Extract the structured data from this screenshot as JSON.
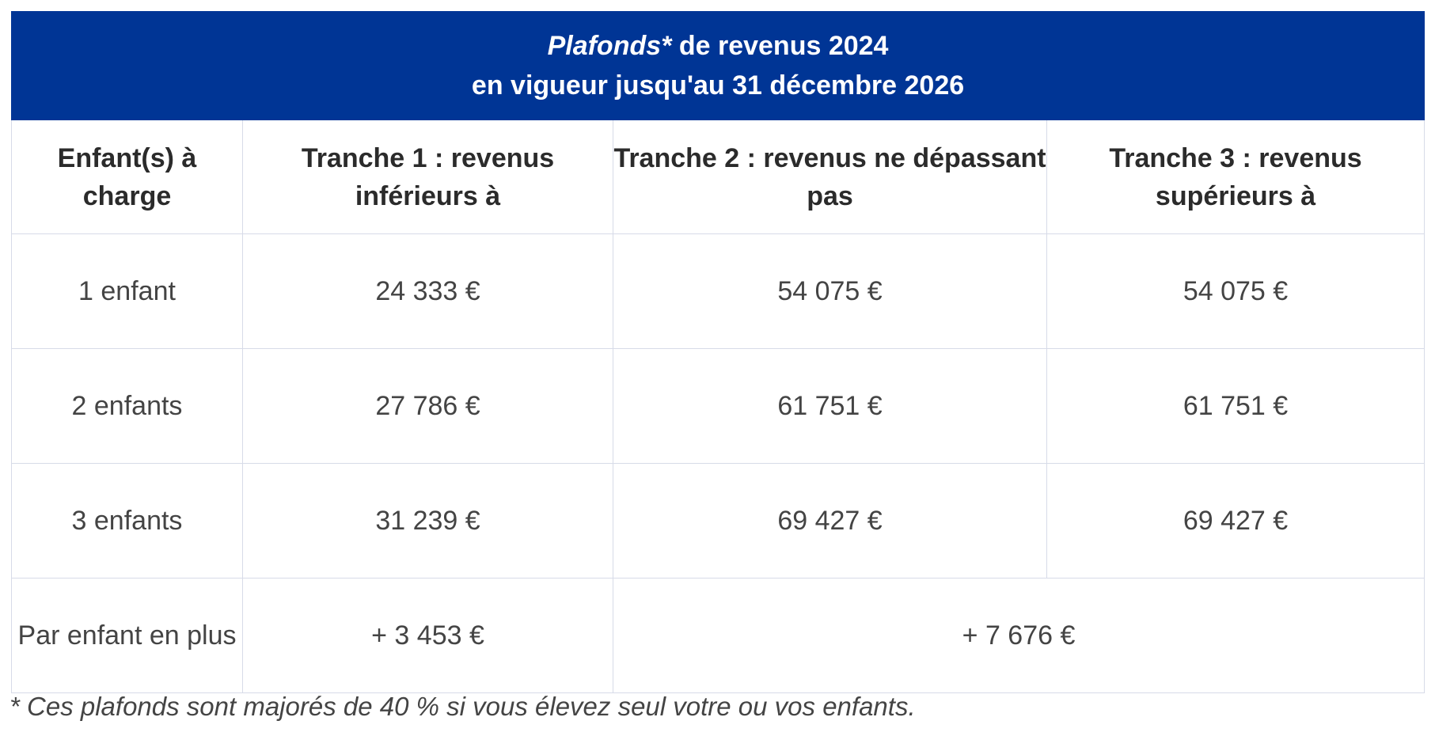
{
  "title": {
    "line1_italic": "Plafonds*",
    "line1_rest": " de revenus 2024",
    "line2": "en vigueur jusqu'au 31 décembre 2026"
  },
  "headers": [
    "Enfant(s) à charge",
    "Tranche 1 : revenus inférieurs à",
    "Tranche 2 : revenus ne dépassant pas",
    "Tranche 3 : revenus supérieurs à"
  ],
  "rows": [
    {
      "label": "1 enfant",
      "t1": "24 333 €",
      "t2": "54 075 €",
      "t3": "54 075 €"
    },
    {
      "label": "2 enfants",
      "t1": "27 786 €",
      "t2": "61 751 €",
      "t3": "61 751 €"
    },
    {
      "label": "3 enfants",
      "t1": "31 239 €",
      "t2": "69 427 €",
      "t3": "69 427 €"
    }
  ],
  "extra_row": {
    "label": "Par enfant en plus",
    "t1": "+ 3 453 €",
    "t2_t3": "+ 7 676 €"
  },
  "footnote": "* Ces plafonds sont majorés de 40 % si vous élevez seul votre ou vos enfants.",
  "colors": {
    "header_bg": "#003595",
    "header_text": "#ffffff",
    "border": "#d7dbe8"
  }
}
